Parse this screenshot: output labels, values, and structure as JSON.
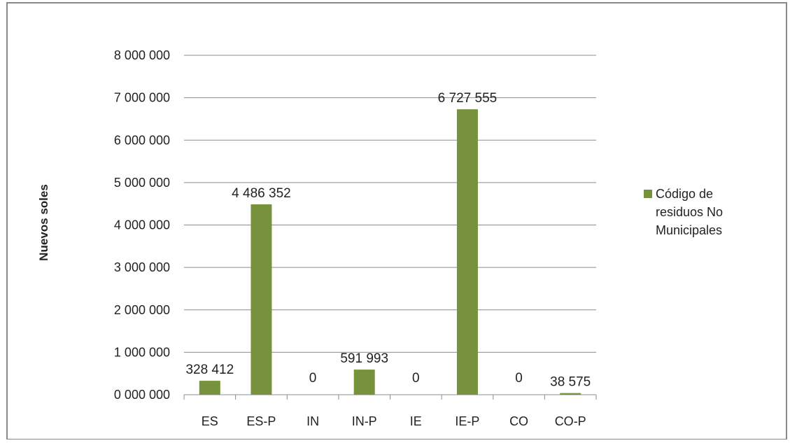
{
  "chart_data": {
    "type": "bar",
    "categories": [
      "ES",
      "ES-P",
      "IN",
      "IN-P",
      "IE",
      "IE-P",
      "CO",
      "CO-P"
    ],
    "series": [
      {
        "name": "Código de residuos No Municipales",
        "values": [
          328412,
          4486352,
          0,
          591993,
          0,
          6727555,
          0,
          38575
        ]
      }
    ],
    "data_labels": [
      "328 412",
      "4 486 352",
      "0",
      "591 993",
      "0",
      "6 727 555",
      "0",
      "38 575"
    ],
    "xlabel": "",
    "ylabel": "Nuevos soles",
    "ylim": [
      0,
      8000000
    ],
    "y_ticks": [
      0,
      1000000,
      2000000,
      3000000,
      4000000,
      5000000,
      6000000,
      7000000,
      8000000
    ],
    "y_tick_labels": [
      "0 000 000",
      "1 000 000",
      "2 000 000",
      "3 000 000",
      "4 000 000",
      "5 000 000",
      "6 000 000",
      "7 000 000",
      "8 000 000"
    ],
    "legend": {
      "placement": "right",
      "lines": [
        "Código de",
        "residuos No",
        "Municipales"
      ]
    },
    "grid": true,
    "colors": {
      "bar": "#76923c",
      "grid": "#8c8c8c",
      "text": "#222222",
      "frame": "#888888"
    }
  }
}
